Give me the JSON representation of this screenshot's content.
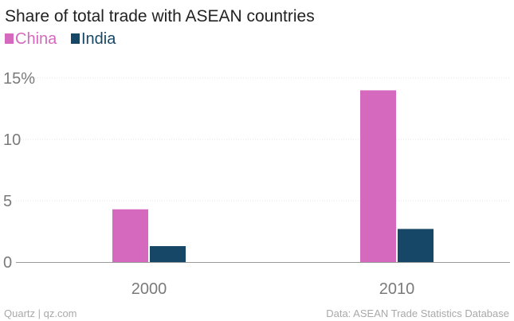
{
  "chart_data": {
    "type": "bar",
    "title": "Share of total trade with ASEAN countries",
    "categories": [
      "2000",
      "2010"
    ],
    "series": [
      {
        "name": "China",
        "color": "#d469bd",
        "values": [
          4.3,
          14.0
        ]
      },
      {
        "name": "India",
        "color": "#164766",
        "values": [
          1.3,
          2.7
        ]
      }
    ],
    "yticks": [
      {
        "value": 0,
        "label": "0"
      },
      {
        "value": 5,
        "label": "5"
      },
      {
        "value": 10,
        "label": "10"
      },
      {
        "value": 15,
        "label": "15%"
      }
    ],
    "ylim": [
      0,
      15
    ],
    "xlabel": "",
    "ylabel": "",
    "grid": true,
    "legend_position": "top-left"
  },
  "footer": {
    "source_left": "Quartz | qz.com",
    "source_right": "Data: ASEAN Trade Statistics Database"
  }
}
